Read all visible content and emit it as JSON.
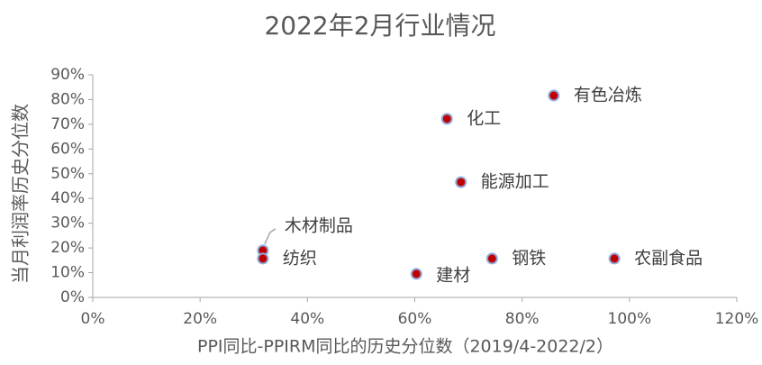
{
  "chart_data": {
    "type": "scatter",
    "title": "2022年2月行业情况",
    "x_label": "PPI同比-PPIRM同比的历史分位数（2019/4-2022/2）",
    "y_label": "当月利润率历史分位数",
    "point_labels": [
      "木材制品",
      "纺织",
      "建材",
      "钢铁",
      "农副食品",
      "能源加工",
      "化工",
      "有色冶炼"
    ],
    "x": [
      31.7,
      31.7,
      60.3,
      74.4,
      97.2,
      68.6,
      66,
      85.9
    ],
    "values": [
      19,
      15.7,
      9.5,
      15.7,
      15.7,
      46.6,
      72.2,
      81.6
    ],
    "color": "#c00000",
    "edge_color": "#8faadc",
    "xlim": [
      0,
      120
    ],
    "xticks": [
      {
        "value": 0,
        "label": "0%"
      },
      {
        "value": 20,
        "label": "20%"
      },
      {
        "value": 40,
        "label": "40%"
      },
      {
        "value": 60,
        "label": "60%"
      },
      {
        "value": 80,
        "label": "80%"
      },
      {
        "value": 100,
        "label": "100%"
      },
      {
        "value": 120,
        "label": "120%"
      }
    ],
    "ylim": [
      0,
      90
    ],
    "yticks": [
      {
        "value": 0,
        "label": "0%"
      },
      {
        "value": 10,
        "label": "10%"
      },
      {
        "value": 20,
        "label": "20%"
      },
      {
        "value": 30,
        "label": "30%"
      },
      {
        "value": 40,
        "label": "40%"
      },
      {
        "value": 50,
        "label": "50%"
      },
      {
        "value": 60,
        "label": "60%"
      },
      {
        "value": 70,
        "label": "70%"
      },
      {
        "value": 80,
        "label": "80%"
      },
      {
        "value": 90,
        "label": "90%"
      }
    ],
    "grid": false
  }
}
